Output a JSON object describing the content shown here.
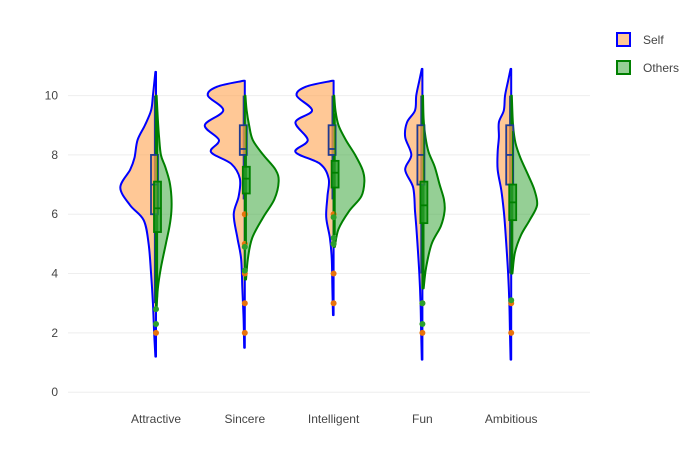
{
  "chart_data": {
    "type": "violin",
    "title": "",
    "xlabel": "",
    "ylabel": "",
    "categories": [
      "Attractive",
      "Sincere",
      "Intelligent",
      "Fun",
      "Ambitious"
    ],
    "ylim": [
      -0.6,
      11.2
    ],
    "yticks": [
      0,
      2,
      4,
      6,
      8,
      10
    ],
    "grid": true,
    "legend_position": "top-right",
    "series": [
      {
        "name": "Self",
        "side": "negative",
        "fill_color": "#ffa350",
        "fill_opacity": 0.6,
        "line_color": "#0000ff",
        "box_line_color": "#1f3a93",
        "point_color": "#e8730c",
        "violins": {
          "Attractive": {
            "span": [
              1.2,
              10.8
            ],
            "density": [
              [
                1.2,
                0.01
              ],
              [
                2,
                0.03
              ],
              [
                3,
                0.05
              ],
              [
                4,
                0.08
              ],
              [
                5,
                0.12
              ],
              [
                5.8,
                0.2
              ],
              [
                6.3,
                0.42
              ],
              [
                6.9,
                0.58
              ],
              [
                7.5,
                0.42
              ],
              [
                7.9,
                0.35
              ],
              [
                8.5,
                0.3
              ],
              [
                9,
                0.18
              ],
              [
                9.5,
                0.08
              ],
              [
                10,
                0.05
              ],
              [
                10.8,
                0.01
              ]
            ],
            "box": {
              "q1": 6,
              "median": 7,
              "q3": 8
            },
            "whiskers": [
              3,
              10
            ],
            "outliers": [
              2
            ]
          },
          "Sincere": {
            "span": [
              1.5,
              10.5
            ],
            "density": [
              [
                1.5,
                0.01
              ],
              [
                2.5,
                0.02
              ],
              [
                3.5,
                0.04
              ],
              [
                4.5,
                0.06
              ],
              [
                5.2,
                0.12
              ],
              [
                6,
                0.18
              ],
              [
                6.6,
                0.1
              ],
              [
                7.2,
                0.08
              ],
              [
                7.7,
                0.22
              ],
              [
                8.1,
                0.55
              ],
              [
                8.5,
                0.42
              ],
              [
                9,
                0.65
              ],
              [
                9.5,
                0.35
              ],
              [
                10,
                0.6
              ],
              [
                10.3,
                0.45
              ],
              [
                10.5,
                0.02
              ]
            ],
            "box": {
              "q1": 8,
              "median": 8.2,
              "q3": 9
            },
            "whiskers": [
              6.5,
              10
            ],
            "outliers": [
              2,
              3,
              4,
              5,
              6
            ]
          },
          "Intelligent": {
            "span": [
              2.6,
              10.5
            ],
            "density": [
              [
                2.6,
                0.01
              ],
              [
                3.5,
                0.02
              ],
              [
                4.5,
                0.03
              ],
              [
                5.2,
                0.06
              ],
              [
                5.9,
                0.12
              ],
              [
                6.6,
                0.1
              ],
              [
                7.2,
                0.08
              ],
              [
                7.7,
                0.22
              ],
              [
                8.1,
                0.62
              ],
              [
                8.5,
                0.42
              ],
              [
                9.1,
                0.62
              ],
              [
                9.5,
                0.35
              ],
              [
                10,
                0.6
              ],
              [
                10.3,
                0.45
              ],
              [
                10.5,
                0.02
              ]
            ],
            "box": {
              "q1": 8,
              "median": 8.2,
              "q3": 9
            },
            "whiskers": [
              6.5,
              10
            ],
            "outliers": [
              3,
              4,
              5,
              6
            ]
          },
          "Fun": {
            "span": [
              1.1,
              10.9
            ],
            "density": [
              [
                1.1,
                0.01
              ],
              [
                2,
                0.02
              ],
              [
                3,
                0.03
              ],
              [
                4,
                0.05
              ],
              [
                5,
                0.08
              ],
              [
                5.6,
                0.1
              ],
              [
                6.1,
                0.12
              ],
              [
                6.9,
                0.15
              ],
              [
                7.5,
                0.28
              ],
              [
                8,
                0.18
              ],
              [
                8.6,
                0.28
              ],
              [
                9.1,
                0.25
              ],
              [
                9.5,
                0.12
              ],
              [
                10,
                0.1
              ],
              [
                10.5,
                0.05
              ],
              [
                10.9,
                0.01
              ]
            ],
            "box": {
              "q1": 7,
              "median": 8,
              "q3": 9
            },
            "whiskers": [
              4,
              10
            ],
            "outliers": [
              2,
              3
            ]
          },
          "Ambitious": {
            "span": [
              1.1,
              10.9
            ],
            "density": [
              [
                1.1,
                0.01
              ],
              [
                2,
                0.02
              ],
              [
                3,
                0.03
              ],
              [
                4,
                0.05
              ],
              [
                5,
                0.08
              ],
              [
                5.6,
                0.1
              ],
              [
                6.1,
                0.12
              ],
              [
                6.8,
                0.16
              ],
              [
                7.5,
                0.22
              ],
              [
                8.1,
                0.22
              ],
              [
                8.6,
                0.2
              ],
              [
                9.1,
                0.2
              ],
              [
                9.5,
                0.12
              ],
              [
                10,
                0.1
              ],
              [
                10.5,
                0.05
              ],
              [
                10.9,
                0.01
              ]
            ],
            "box": {
              "q1": 7,
              "median": 8,
              "q3": 9
            },
            "whiskers": [
              4,
              10
            ],
            "outliers": [
              2,
              3
            ]
          }
        }
      },
      {
        "name": "Others",
        "side": "positive",
        "fill_color": "#2ca02c",
        "fill_opacity": 0.5,
        "line_color": "#008000",
        "box_line_color": "#008000",
        "point_color": "#2ca02c",
        "violins": {
          "Attractive": {
            "span": [
              2.8,
              10.0
            ],
            "density": [
              [
                2.8,
                0.01
              ],
              [
                3.5,
                0.03
              ],
              [
                4.2,
                0.08
              ],
              [
                5,
                0.16
              ],
              [
                5.6,
                0.22
              ],
              [
                6.1,
                0.25
              ],
              [
                6.6,
                0.25
              ],
              [
                7.1,
                0.22
              ],
              [
                7.6,
                0.15
              ],
              [
                8,
                0.08
              ],
              [
                8.6,
                0.05
              ],
              [
                9.2,
                0.03
              ],
              [
                10,
                0.01
              ]
            ],
            "box": {
              "q1": 5.4,
              "median": 6.2,
              "q3": 7.1
            },
            "whiskers": [
              3.2,
              9.4
            ],
            "outliers": [
              2.3,
              2.8
            ]
          },
          "Sincere": {
            "span": [
              3.8,
              10.0
            ],
            "density": [
              [
                3.8,
                0.02
              ],
              [
                4.5,
                0.05
              ],
              [
                5.2,
                0.12
              ],
              [
                5.9,
                0.3
              ],
              [
                6.5,
                0.48
              ],
              [
                7.1,
                0.55
              ],
              [
                7.5,
                0.5
              ],
              [
                8,
                0.3
              ],
              [
                8.5,
                0.13
              ],
              [
                9,
                0.07
              ],
              [
                9.5,
                0.03
              ],
              [
                10,
                0.01
              ]
            ],
            "box": {
              "q1": 6.7,
              "median": 7.2,
              "q3": 7.6
            },
            "whiskers": [
              5,
              9
            ],
            "outliers": [
              4.1,
              4.9
            ]
          },
          "Intelligent": {
            "span": [
              4.9,
              10.0
            ],
            "density": [
              [
                4.9,
                0.02
              ],
              [
                5.5,
                0.08
              ],
              [
                6.1,
                0.25
              ],
              [
                6.6,
                0.45
              ],
              [
                7.1,
                0.5
              ],
              [
                7.5,
                0.47
              ],
              [
                8,
                0.35
              ],
              [
                8.5,
                0.2
              ],
              [
                9,
                0.08
              ],
              [
                9.5,
                0.03
              ],
              [
                10,
                0.01
              ]
            ],
            "box": {
              "q1": 6.9,
              "median": 7.4,
              "q3": 7.8
            },
            "whiskers": [
              5.3,
              9.4
            ],
            "outliers": [
              5.0,
              5.2,
              5.9
            ]
          },
          "Fun": {
            "span": [
              3.5,
              10.0
            ],
            "density": [
              [
                3.5,
                0.02
              ],
              [
                4.2,
                0.06
              ],
              [
                5,
                0.15
              ],
              [
                5.6,
                0.3
              ],
              [
                6.1,
                0.36
              ],
              [
                6.5,
                0.35
              ],
              [
                7,
                0.28
              ],
              [
                7.6,
                0.2
              ],
              [
                8.1,
                0.1
              ],
              [
                8.6,
                0.05
              ],
              [
                9.2,
                0.02
              ],
              [
                10,
                0.01
              ]
            ],
            "box": {
              "q1": 5.7,
              "median": 6.3,
              "q3": 7.1
            },
            "whiskers": [
              3.8,
              9.1
            ],
            "outliers": [
              2.3,
              3.0
            ]
          },
          "Ambitious": {
            "span": [
              4.0,
              10.0
            ],
            "density": [
              [
                4,
                0.02
              ],
              [
                4.7,
                0.06
              ],
              [
                5.3,
                0.16
              ],
              [
                5.8,
                0.3
              ],
              [
                6.3,
                0.42
              ],
              [
                6.8,
                0.38
              ],
              [
                7.3,
                0.28
              ],
              [
                7.9,
                0.15
              ],
              [
                8.4,
                0.07
              ],
              [
                9,
                0.03
              ],
              [
                10,
                0.01
              ]
            ],
            "box": {
              "q1": 5.8,
              "median": 6.4,
              "q3": 7.0
            },
            "whiskers": [
              4.2,
              8.8
            ],
            "outliers": [
              3.1
            ]
          }
        }
      }
    ]
  }
}
